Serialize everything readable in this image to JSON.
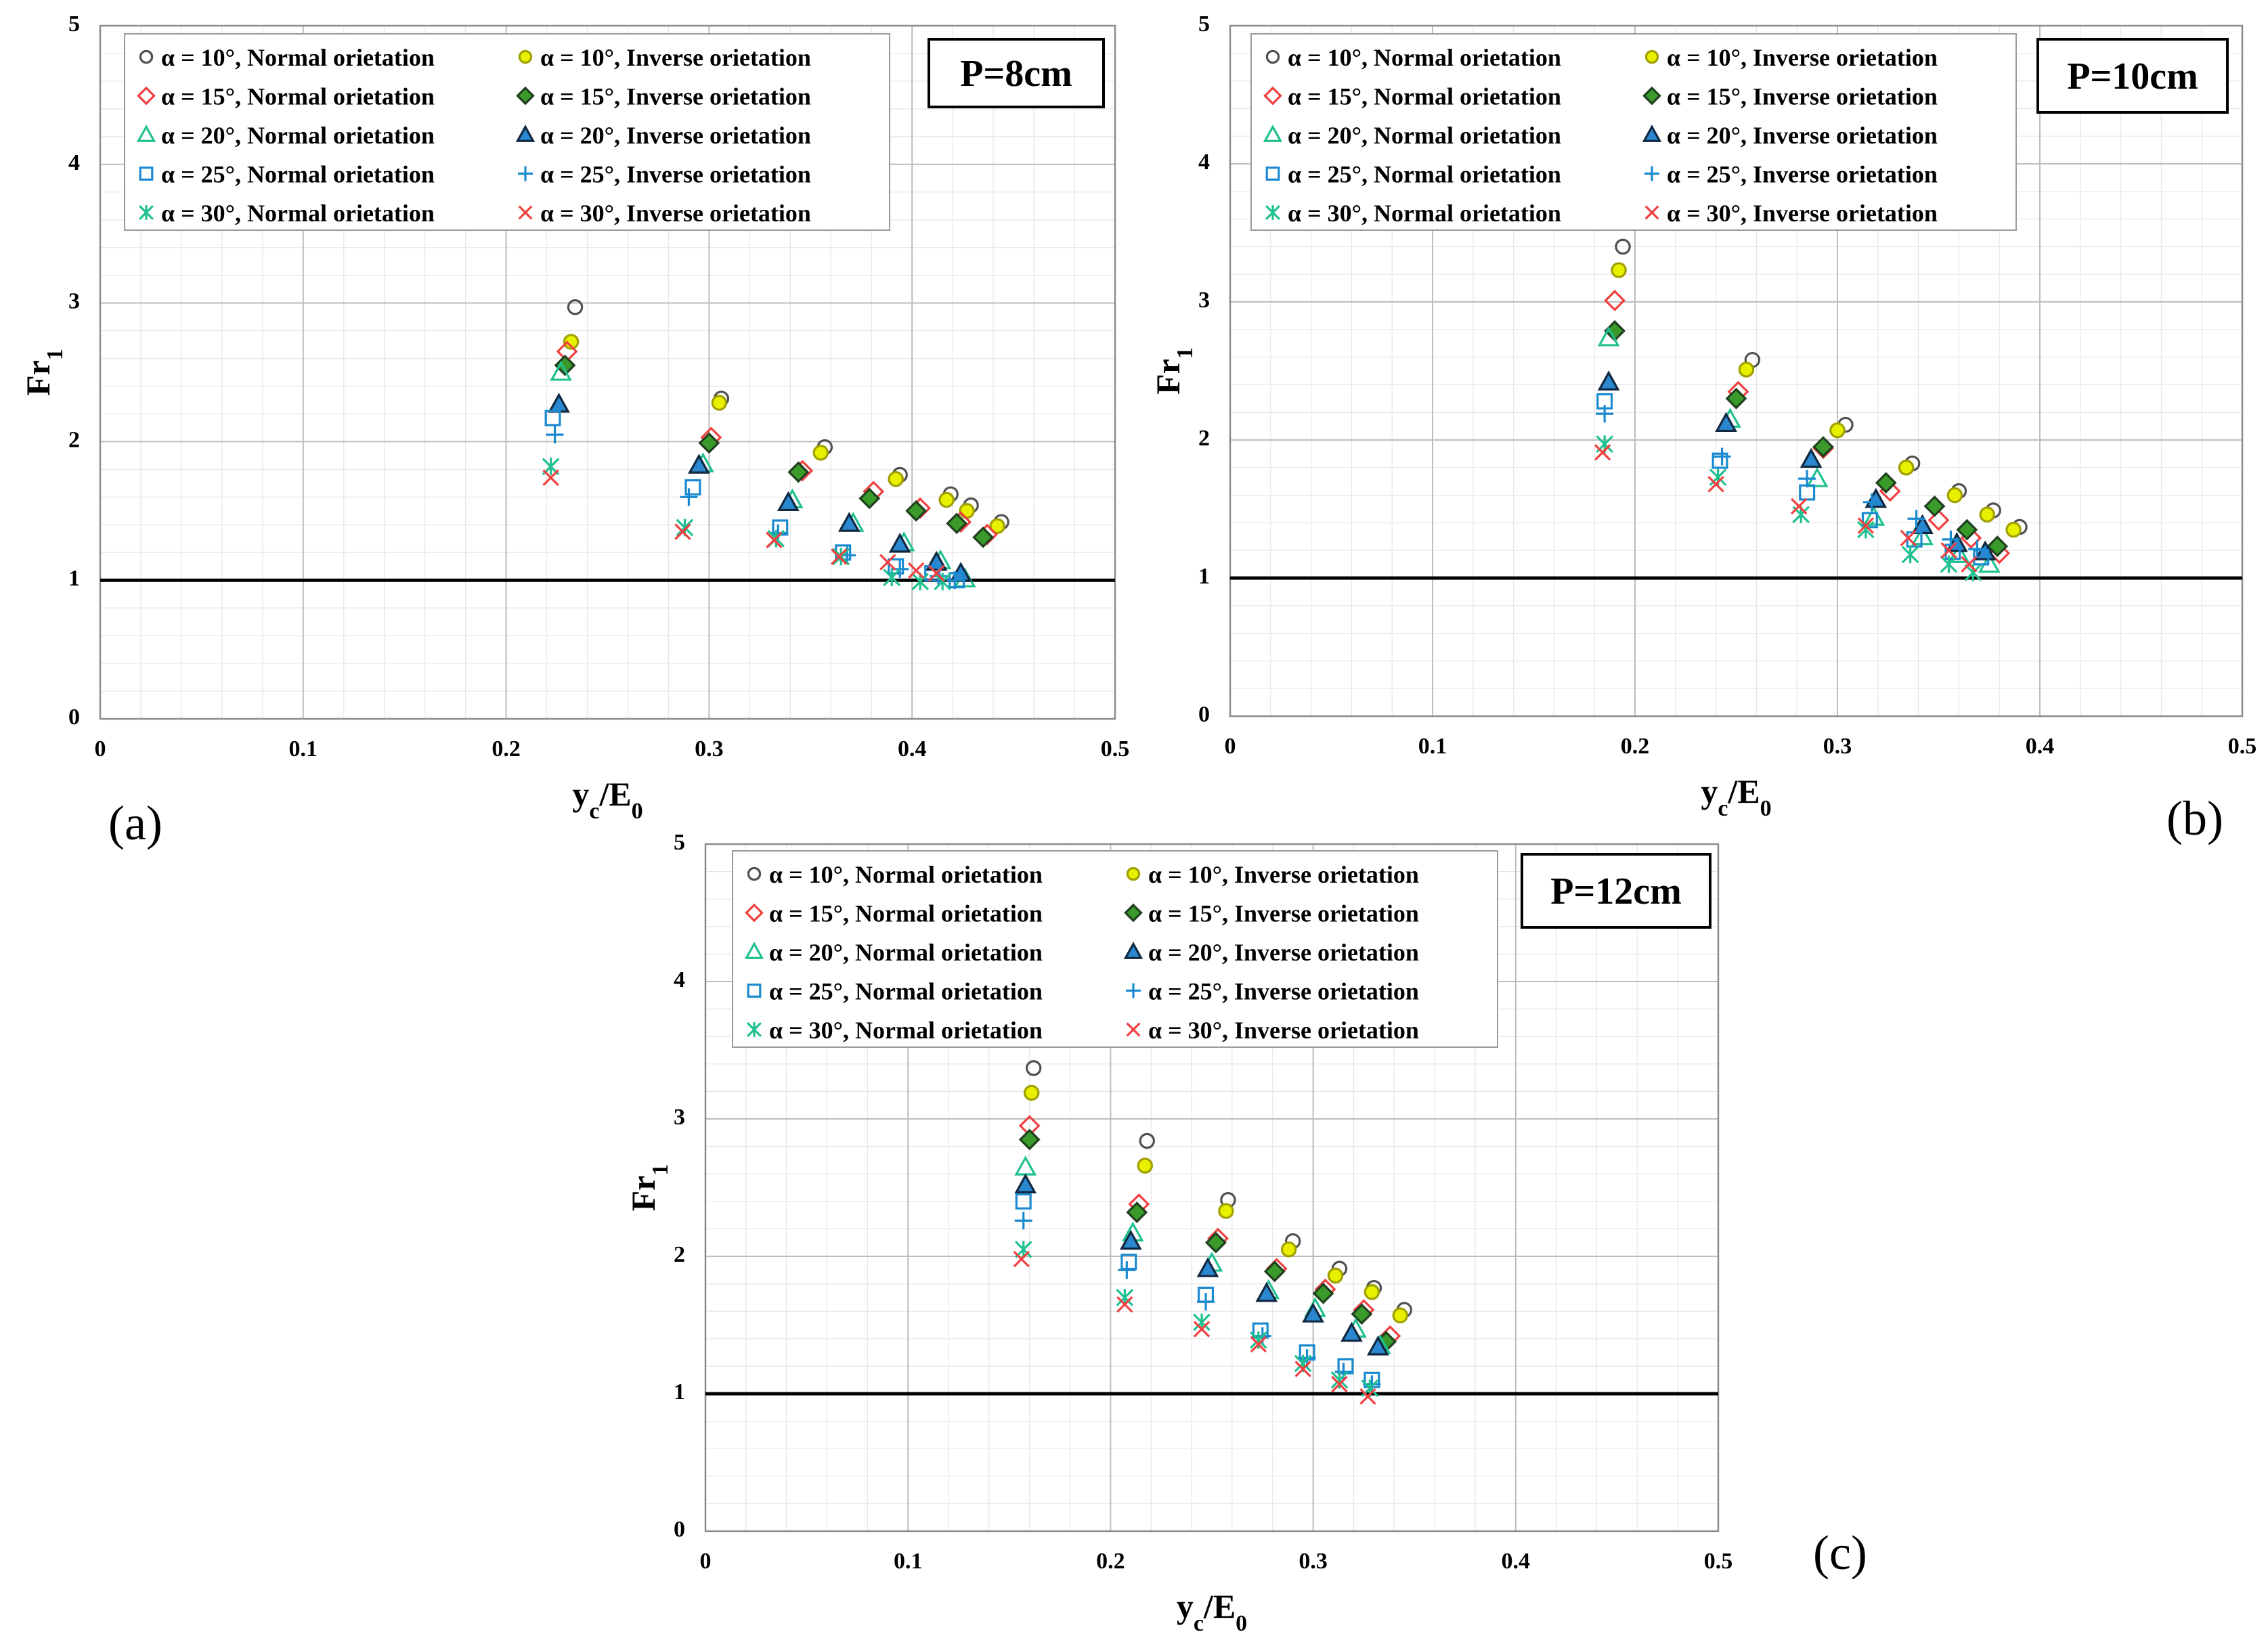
{
  "figure": {
    "panel_labels": [
      "(a)",
      "(b)",
      "(c)"
    ]
  },
  "legend_entries": [
    {
      "text": "α = 10°, Normal orietation",
      "marker": "circle",
      "stroke": "#505050",
      "fill": "none"
    },
    {
      "text": "α = 10°, Inverse orietation",
      "marker": "circle",
      "stroke": "#a0a000",
      "fill": "#e8f000"
    },
    {
      "text": "α = 15°, Normal orietation",
      "marker": "diamond",
      "stroke": "#f04040",
      "fill": "none"
    },
    {
      "text": "α = 15°, Inverse orietation",
      "marker": "diamond",
      "stroke": "#204020",
      "fill": "#3a9a2a"
    },
    {
      "text": "α = 20°, Normal orietation",
      "marker": "triangle",
      "stroke": "#20c090",
      "fill": "none"
    },
    {
      "text": "α = 20°, Inverse orietation",
      "marker": "triangle",
      "stroke": "#102840",
      "fill": "#2a88d0"
    },
    {
      "text": "α = 25°, Normal orietation",
      "marker": "square",
      "stroke": "#1a8ad0",
      "fill": "none"
    },
    {
      "text": "α = 25°, Inverse orietation",
      "marker": "plus",
      "stroke": "#1a8ad0",
      "fill": "none"
    },
    {
      "text": "α = 30°, Normal orietation",
      "marker": "star",
      "stroke": "#20c090",
      "fill": "none"
    },
    {
      "text": "α = 30°, Inverse orietation",
      "marker": "x",
      "stroke": "#f04040",
      "fill": "none"
    }
  ],
  "chart_data": [
    {
      "type": "scatter",
      "panel": "(a)",
      "title": "P=8cm",
      "xlabel": "yc/E0",
      "ylabel": "Fr1",
      "xlim": [
        0,
        0.5
      ],
      "ylim": [
        0,
        5
      ],
      "xticks": [
        "0",
        "0.1",
        "0.2",
        "0.3",
        "0.4",
        "0.5"
      ],
      "yticks": [
        "0",
        "1",
        "2",
        "3",
        "4",
        "5"
      ],
      "reference_line": 1,
      "grid": true,
      "series": [
        {
          "name": "α = 10°, Normal orietation",
          "x": [
            0.234,
            0.306,
            0.357,
            0.394,
            0.419,
            0.429,
            0.444
          ],
          "y": [
            2.97,
            2.31,
            1.96,
            1.76,
            1.62,
            1.54,
            1.42
          ]
        },
        {
          "name": "α = 10°, Inverse orietation",
          "x": [
            0.232,
            0.305,
            0.355,
            0.392,
            0.417,
            0.427,
            0.442
          ],
          "y": [
            2.72,
            2.28,
            1.92,
            1.73,
            1.58,
            1.5,
            1.39
          ]
        },
        {
          "name": "α = 15°, Normal orietation",
          "x": [
            0.23,
            0.301,
            0.346,
            0.381,
            0.404,
            0.424,
            0.437
          ],
          "y": [
            2.65,
            2.03,
            1.79,
            1.64,
            1.52,
            1.42,
            1.33
          ]
        },
        {
          "name": "α = 15°, Inverse orietation",
          "x": [
            0.229,
            0.3,
            0.344,
            0.379,
            0.402,
            0.422,
            0.435
          ],
          "y": [
            2.55,
            1.99,
            1.78,
            1.59,
            1.5,
            1.41,
            1.31
          ]
        },
        {
          "name": "α = 20°, Normal orietation",
          "x": [
            0.227,
            0.297,
            0.341,
            0.371,
            0.396,
            0.414,
            0.426
          ],
          "y": [
            2.5,
            1.84,
            1.58,
            1.41,
            1.27,
            1.14,
            1.01
          ]
        },
        {
          "name": "α = 20°, Inverse orietation",
          "x": [
            0.226,
            0.295,
            0.339,
            0.369,
            0.394,
            0.412,
            0.424
          ],
          "y": [
            2.27,
            1.83,
            1.56,
            1.41,
            1.26,
            1.13,
            1.05
          ]
        },
        {
          "name": "α = 25°, Normal orietation",
          "x": [
            0.223,
            0.292,
            0.335,
            0.366,
            0.392,
            0.41,
            0.422
          ],
          "y": [
            2.17,
            1.67,
            1.38,
            1.2,
            1.1,
            1.05,
            1.0
          ]
        },
        {
          "name": "α = 25°, Inverse orietation",
          "x": [
            0.224,
            0.29,
            0.334,
            0.368,
            0.394,
            0.413,
            0.421
          ],
          "y": [
            2.05,
            1.6,
            1.34,
            1.18,
            1.08,
            1.03,
            1.0
          ]
        },
        {
          "name": "α = 30°, Normal orietation",
          "x": [
            0.222,
            0.288,
            0.333,
            0.365,
            0.39,
            0.404,
            0.415
          ],
          "y": [
            1.82,
            1.38,
            1.3,
            1.17,
            1.02,
            0.99,
            0.99
          ]
        },
        {
          "name": "α = 30°, Inverse orietation",
          "x": [
            0.222,
            0.287,
            0.332,
            0.364,
            0.388,
            0.402,
            0.412
          ],
          "y": [
            1.74,
            1.35,
            1.29,
            1.17,
            1.13,
            1.07,
            1.05
          ]
        }
      ]
    },
    {
      "type": "scatter",
      "panel": "(b)",
      "title": "P=10cm",
      "xlabel": "yc/E0",
      "ylabel": "Fr1",
      "xlim": [
        0,
        0.5
      ],
      "ylim": [
        0,
        5
      ],
      "xticks": [
        "0",
        "0.1",
        "0.2",
        "0.3",
        "0.4",
        "0.5"
      ],
      "yticks": [
        "0",
        "1",
        "2",
        "3",
        "4",
        "5"
      ],
      "reference_line": 1,
      "grid": true,
      "series": [
        {
          "name": "α = 10°, Normal orietation",
          "x": [
            0.194,
            0.258,
            0.304,
            0.337,
            0.36,
            0.377,
            0.39
          ],
          "y": [
            3.4,
            2.58,
            2.11,
            1.83,
            1.63,
            1.49,
            1.37
          ]
        },
        {
          "name": "α = 10°, Inverse orietation",
          "x": [
            0.192,
            0.255,
            0.3,
            0.334,
            0.358,
            0.374,
            0.387
          ],
          "y": [
            3.23,
            2.51,
            2.07,
            1.8,
            1.6,
            1.46,
            1.35
          ]
        },
        {
          "name": "α = 15°, Normal orietation",
          "x": [
            0.19,
            0.251,
            0.293,
            0.326,
            0.35,
            0.366,
            0.38
          ],
          "y": [
            3.01,
            2.35,
            1.94,
            1.63,
            1.42,
            1.29,
            1.18
          ]
        },
        {
          "name": "α = 15°, Inverse orietation",
          "x": [
            0.19,
            0.25,
            0.293,
            0.324,
            0.348,
            0.364,
            0.379
          ],
          "y": [
            2.79,
            2.3,
            1.95,
            1.69,
            1.52,
            1.35,
            1.23
          ]
        },
        {
          "name": "α = 20°, Normal orietation",
          "x": [
            0.187,
            0.247,
            0.29,
            0.318,
            0.342,
            0.36,
            0.375
          ],
          "y": [
            2.74,
            2.15,
            1.72,
            1.44,
            1.3,
            1.17,
            1.1
          ]
        },
        {
          "name": "α = 20°, Inverse orietation",
          "x": [
            0.187,
            0.245,
            0.287,
            0.319,
            0.342,
            0.359,
            0.373
          ],
          "y": [
            2.42,
            2.12,
            1.86,
            1.57,
            1.38,
            1.25,
            1.19
          ]
        },
        {
          "name": "α = 25°, Normal orietation",
          "x": [
            0.185,
            0.242,
            0.285,
            0.316,
            0.338,
            0.357,
            0.371
          ],
          "y": [
            2.28,
            1.85,
            1.62,
            1.42,
            1.28,
            1.19,
            1.15
          ]
        },
        {
          "name": "α = 25°, Inverse orietation",
          "x": [
            0.185,
            0.243,
            0.285,
            0.317,
            0.339,
            0.356,
            0.369
          ],
          "y": [
            2.19,
            1.88,
            1.72,
            1.55,
            1.43,
            1.28,
            1.21
          ]
        },
        {
          "name": "α = 30°, Normal orietation",
          "x": [
            0.185,
            0.241,
            0.282,
            0.314,
            0.336,
            0.355,
            0.367
          ],
          "y": [
            1.97,
            1.73,
            1.46,
            1.35,
            1.17,
            1.1,
            1.04
          ]
        },
        {
          "name": "α = 30°, Inverse orietation",
          "x": [
            0.184,
            0.24,
            0.281,
            0.314,
            0.335,
            0.355,
            0.365
          ],
          "y": [
            1.91,
            1.68,
            1.52,
            1.38,
            1.29,
            1.2,
            1.1
          ]
        }
      ]
    },
    {
      "type": "scatter",
      "panel": "(c)",
      "title": "P=12cm",
      "xlabel": "yc/E0",
      "ylabel": "Fr1",
      "xlim": [
        0,
        0.5
      ],
      "ylim": [
        0,
        5
      ],
      "xticks": [
        "0",
        "0.1",
        "0.2",
        "0.3",
        "0.4",
        "0.5"
      ],
      "yticks": [
        "0",
        "1",
        "2",
        "3",
        "4",
        "5"
      ],
      "reference_line": 1,
      "grid": true,
      "series": [
        {
          "name": "α = 10°, Normal orietation",
          "x": [
            0.162,
            0.218,
            0.258,
            0.29,
            0.313,
            0.33,
            0.345
          ],
          "y": [
            3.37,
            2.84,
            2.41,
            2.11,
            1.91,
            1.77,
            1.61
          ]
        },
        {
          "name": "α = 10°, Inverse orietation",
          "x": [
            0.161,
            0.217,
            0.257,
            0.288,
            0.311,
            0.329,
            0.343
          ],
          "y": [
            3.19,
            2.66,
            2.33,
            2.05,
            1.86,
            1.74,
            1.57
          ]
        },
        {
          "name": "α = 15°, Normal orietation",
          "x": [
            0.16,
            0.214,
            0.253,
            0.282,
            0.306,
            0.325,
            0.338
          ],
          "y": [
            2.95,
            2.38,
            2.13,
            1.91,
            1.76,
            1.61,
            1.42
          ]
        },
        {
          "name": "α = 15°, Inverse orietation",
          "x": [
            0.16,
            0.213,
            0.252,
            0.281,
            0.305,
            0.324,
            0.336
          ],
          "y": [
            2.85,
            2.32,
            2.1,
            1.89,
            1.73,
            1.58,
            1.38
          ]
        },
        {
          "name": "α = 20°, Normal orietation",
          "x": [
            0.158,
            0.211,
            0.25,
            0.278,
            0.301,
            0.321,
            0.333
          ],
          "y": [
            2.65,
            2.17,
            1.95,
            1.75,
            1.62,
            1.47,
            1.35
          ]
        },
        {
          "name": "α = 20°, Inverse orietation",
          "x": [
            0.158,
            0.21,
            0.248,
            0.277,
            0.3,
            0.319,
            0.332
          ],
          "y": [
            2.52,
            2.11,
            1.91,
            1.73,
            1.58,
            1.44,
            1.34
          ]
        },
        {
          "name": "α = 25°, Normal orietation",
          "x": [
            0.157,
            0.209,
            0.247,
            0.274,
            0.297,
            0.316,
            0.329
          ],
          "y": [
            2.4,
            1.96,
            1.72,
            1.46,
            1.3,
            1.2,
            1.1
          ]
        },
        {
          "name": "α = 25°, Inverse orietation",
          "x": [
            0.157,
            0.208,
            0.247,
            0.275,
            0.297,
            0.315,
            0.329
          ],
          "y": [
            2.26,
            1.9,
            1.67,
            1.42,
            1.26,
            1.16,
            1.07
          ]
        },
        {
          "name": "α = 30°, Normal orietation",
          "x": [
            0.157,
            0.207,
            0.245,
            0.273,
            0.295,
            0.313,
            0.328
          ],
          "y": [
            2.05,
            1.7,
            1.52,
            1.39,
            1.22,
            1.1,
            1.04
          ]
        },
        {
          "name": "α = 30°, Inverse orietation",
          "x": [
            0.156,
            0.207,
            0.245,
            0.273,
            0.295,
            0.313,
            0.327
          ],
          "y": [
            1.98,
            1.65,
            1.47,
            1.36,
            1.18,
            1.07,
            0.98
          ]
        }
      ]
    }
  ]
}
